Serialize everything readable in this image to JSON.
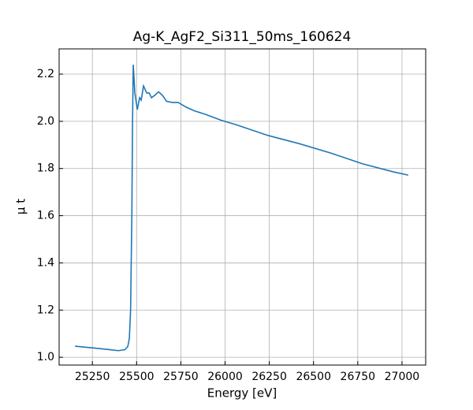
{
  "chart_data": {
    "type": "line",
    "title": "Ag-K_AgF2_Si311_50ms_160624",
    "x_label": "Energy [eV]",
    "y_label": "μ t",
    "x": [
      25152,
      25250,
      25352,
      25397,
      25433,
      25450,
      25459,
      25466,
      25473,
      25477,
      25481,
      25490,
      25504,
      25517,
      25526,
      25539,
      25557,
      25571,
      25584,
      25602,
      25624,
      25646,
      25669,
      25700,
      25735,
      25780,
      25824,
      25887,
      25976,
      26065,
      26243,
      26421,
      26599,
      26777,
      26955,
      27035
    ],
    "series": [
      {
        "name": "μ t",
        "color": "#1f77b4",
        "values": [
          1.047,
          1.04,
          1.032,
          1.028,
          1.032,
          1.045,
          1.08,
          1.2,
          1.6,
          2.0,
          2.24,
          2.12,
          2.05,
          2.1,
          2.09,
          2.15,
          2.12,
          2.12,
          2.1,
          2.11,
          2.125,
          2.11,
          2.085,
          2.08,
          2.08,
          2.06,
          2.045,
          2.03,
          2.005,
          1.985,
          1.94,
          1.905,
          1.865,
          1.82,
          1.785,
          1.772
        ]
      }
    ],
    "xlim": [
      25062,
      27134
    ],
    "ylim": [
      0.967,
      2.307
    ],
    "xticks": [
      25250,
      25500,
      25750,
      26000,
      26250,
      26500,
      26750,
      27000
    ],
    "yticks": [
      {
        "value": 1,
        "label": "1.0"
      },
      1.2,
      1.4,
      1.6,
      1.8,
      {
        "value": 2,
        "label": "2.0"
      },
      2.2
    ],
    "grid": true
  }
}
